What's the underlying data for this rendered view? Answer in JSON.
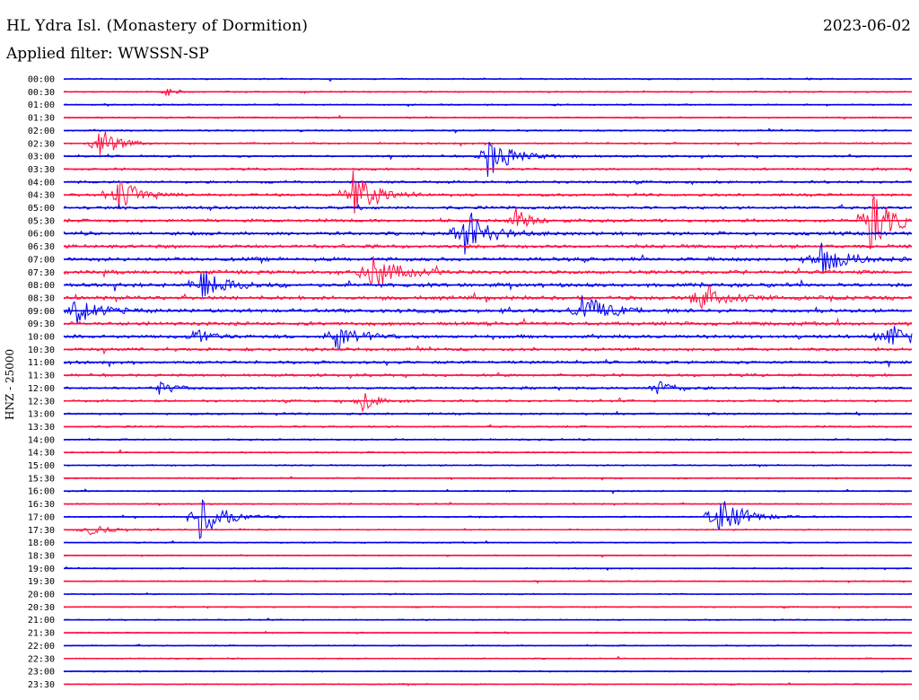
{
  "header": {
    "station": "HL Ydra Isl. (Monastery of Dormition)",
    "date": "2023-06-02",
    "filter": "Applied filter: WWSSN-SP"
  },
  "chart_data": {
    "type": "line",
    "subtype": "helicorder",
    "ylabel": "HNZ - 25000",
    "row_labels": [
      "00:00",
      "00:30",
      "01:00",
      "01:30",
      "02:00",
      "02:30",
      "03:00",
      "03:30",
      "04:00",
      "04:30",
      "05:00",
      "05:30",
      "06:00",
      "06:30",
      "07:00",
      "07:30",
      "08:00",
      "08:30",
      "09:00",
      "09:30",
      "10:00",
      "10:30",
      "11:00",
      "11:30",
      "12:00",
      "12:30",
      "13:00",
      "13:30",
      "14:00",
      "14:30",
      "15:00",
      "15:30",
      "16:00",
      "16:30",
      "17:00",
      "17:30",
      "18:00",
      "18:30",
      "19:00",
      "19:30",
      "20:00",
      "20:30",
      "21:00",
      "21:30",
      "22:00",
      "22:30",
      "23:00",
      "23:30"
    ],
    "colors": [
      "#0000ee",
      "#ff1040"
    ],
    "grid": false,
    "events": [
      {
        "row": 1,
        "x": 0.12,
        "amp": 1.5,
        "width": 0.01
      },
      {
        "row": 5,
        "x": 0.04,
        "amp": 6,
        "width": 0.02
      },
      {
        "row": 6,
        "x": 0.5,
        "amp": 6,
        "width": 0.03
      },
      {
        "row": 9,
        "x": 0.06,
        "amp": 5,
        "width": 0.03
      },
      {
        "row": 9,
        "x": 0.34,
        "amp": 7,
        "width": 0.03
      },
      {
        "row": 11,
        "x": 0.53,
        "amp": 4,
        "width": 0.02
      },
      {
        "row": 11,
        "x": 0.95,
        "amp": 8,
        "width": 0.03
      },
      {
        "row": 12,
        "x": 0.47,
        "amp": 7,
        "width": 0.03
      },
      {
        "row": 14,
        "x": 0.89,
        "amp": 5,
        "width": 0.03
      },
      {
        "row": 15,
        "x": 0.36,
        "amp": 6,
        "width": 0.03
      },
      {
        "row": 16,
        "x": 0.16,
        "amp": 5,
        "width": 0.03
      },
      {
        "row": 17,
        "x": 0.75,
        "amp": 5,
        "width": 0.03
      },
      {
        "row": 18,
        "x": 0.01,
        "amp": 4,
        "width": 0.03
      },
      {
        "row": 18,
        "x": 0.61,
        "amp": 5,
        "width": 0.03
      },
      {
        "row": 20,
        "x": 0.15,
        "amp": 3,
        "width": 0.02
      },
      {
        "row": 20,
        "x": 0.32,
        "amp": 4,
        "width": 0.03
      },
      {
        "row": 20,
        "x": 0.97,
        "amp": 4,
        "width": 0.03
      },
      {
        "row": 24,
        "x": 0.11,
        "amp": 2,
        "width": 0.02
      },
      {
        "row": 24,
        "x": 0.7,
        "amp": 2.5,
        "width": 0.02
      },
      {
        "row": 25,
        "x": 0.35,
        "amp": 3,
        "width": 0.02
      },
      {
        "row": 34,
        "x": 0.16,
        "amp": 6,
        "width": 0.03
      },
      {
        "row": 34,
        "x": 0.77,
        "amp": 7,
        "width": 0.03
      },
      {
        "row": 35,
        "x": 0.03,
        "amp": 1.5,
        "width": 0.03
      }
    ]
  }
}
